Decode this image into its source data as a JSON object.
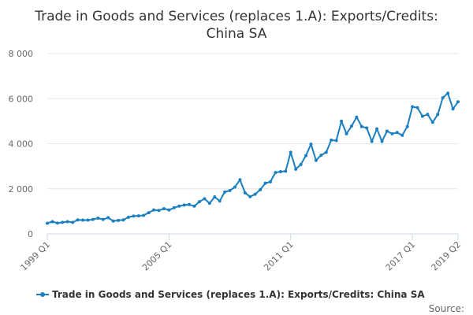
{
  "chart_data": {
    "type": "line",
    "title": "Trade in Goods and Services (replaces 1.A): Exports/Credits: China SA",
    "title_lines": [
      "Trade in Goods and Services (replaces 1.A): Exports/Credits:",
      "China SA"
    ],
    "xlabel": "",
    "ylabel": "",
    "ylim": [
      0,
      8000
    ],
    "yticks": [
      0,
      2000,
      4000,
      6000,
      8000
    ],
    "ytick_labels": [
      "0",
      "2 000",
      "4 000",
      "6 000",
      "8 000"
    ],
    "xtick_labels": [
      "1999 Q1",
      "2005 Q1",
      "2011 Q1",
      "2017 Q1",
      "2019 Q2"
    ],
    "xtick_index": [
      0,
      24,
      48,
      72,
      81
    ],
    "grid": true,
    "legend_position": "bottom",
    "color": "#1a7fc1",
    "series": [
      {
        "name": "Trade in Goods and Services (replaces 1.A): Exports/Credits: China SA",
        "values": [
          470,
          540,
          480,
          510,
          540,
          510,
          620,
          610,
          610,
          640,
          700,
          640,
          720,
          570,
          600,
          620,
          740,
          790,
          800,
          820,
          940,
          1060,
          1040,
          1120,
          1060,
          1160,
          1230,
          1280,
          1300,
          1230,
          1430,
          1560,
          1360,
          1640,
          1460,
          1860,
          1920,
          2080,
          2400,
          1820,
          1650,
          1760,
          1960,
          2250,
          2310,
          2720,
          2760,
          2780,
          3620,
          2870,
          3080,
          3470,
          3980,
          3260,
          3490,
          3620,
          4160,
          4140,
          5000,
          4440,
          4780,
          5180,
          4760,
          4700,
          4100,
          4660,
          4100,
          4560,
          4440,
          4500,
          4370,
          4760,
          5640,
          5600,
          5220,
          5300,
          4950,
          5300,
          6040,
          6240,
          5540,
          5860
        ]
      }
    ]
  },
  "source_label": "Source:"
}
